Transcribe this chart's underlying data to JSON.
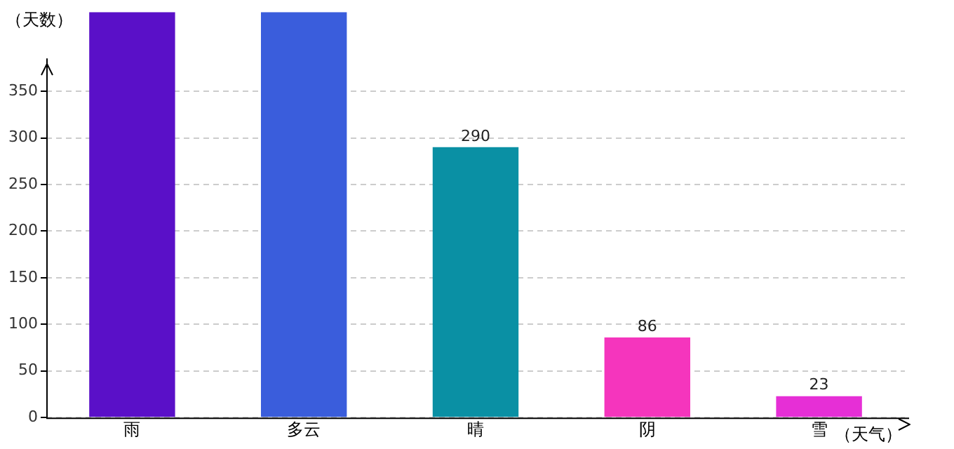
{
  "chart_data": {
    "type": "bar",
    "xlabel": "（天气）",
    "ylabel": "（天数）",
    "categories": [
      "雨",
      "多云",
      "晴",
      "阴",
      "雪"
    ],
    "values": [
      435,
      435,
      290,
      86,
      23
    ],
    "value_labels": [
      null,
      null,
      "290",
      "86",
      "23"
    ],
    "colors": [
      "#5a10c8",
      "#3a5ddc",
      "#0a90a4",
      "#f535bd",
      "#e62fd6"
    ],
    "ylim": [
      0,
      435
    ],
    "yticks": [
      0,
      50,
      100,
      150,
      200,
      250,
      300,
      350
    ],
    "grid": "y",
    "legend": false
  }
}
